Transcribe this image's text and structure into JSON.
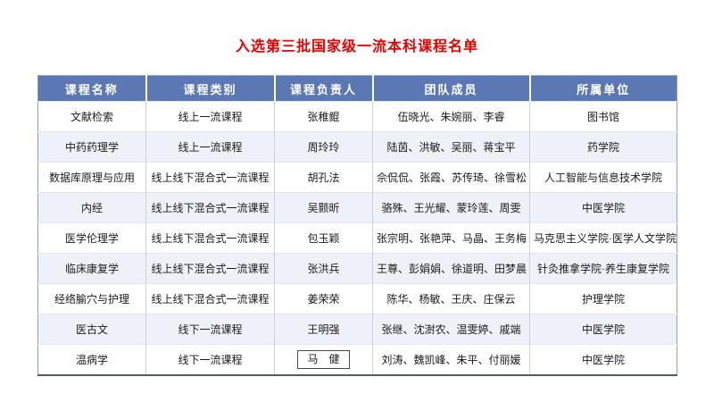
{
  "page": {
    "title": "入选第三批国家级一流本科课程名单",
    "title_color": "#e60000"
  },
  "table": {
    "headers": [
      "课程名称",
      "课程类别",
      "课程负责人",
      "团队成员",
      "所属单位"
    ],
    "header_bg": "#5b78b4",
    "stripe_bg": "#eef1f8",
    "rows": [
      {
        "course": "文献检索",
        "category": "线上一流课程",
        "leader": "张稚鲲",
        "team": "伍晓光、朱婉丽、李睿",
        "unit": "图书馆",
        "leader_boxed": false
      },
      {
        "course": "中药药理学",
        "category": "线上一流课程",
        "leader": "周玲玲",
        "team": "陆茵、洪敏、吴丽、蒋宝平",
        "unit": "药学院",
        "leader_boxed": false
      },
      {
        "course": "数据库原理与应用",
        "category": "线上线下混合式一流课程",
        "leader": "胡孔法",
        "team": "佘侃侃、张霞、苏传琦、徐雪松",
        "unit": "人工智能与信息技术学院",
        "leader_boxed": false
      },
      {
        "course": "内经",
        "category": "线上线下混合式一流课程",
        "leader": "吴颢昕",
        "team": "骆殊、王光耀、蒙玲莲、周雯",
        "unit": "中医学院",
        "leader_boxed": false
      },
      {
        "course": "医学伦理学",
        "category": "线上线下混合式一流课程",
        "leader": "包玉颖",
        "team": "张宗明、张艳萍、马晶、王务梅",
        "unit": "马克思主义学院·医学人文学院",
        "leader_boxed": false
      },
      {
        "course": "临床康复学",
        "category": "线上线下混合式一流课程",
        "leader": "张洪兵",
        "team": "王尊、彭娟娟、徐道明、田梦晨",
        "unit": "针灸推拿学院·养生康复学院",
        "leader_boxed": false
      },
      {
        "course": "经络腧穴与护理",
        "category": "线上线下混合式一流课程",
        "leader": "姜荣荣",
        "team": "陈华、杨敏、王庆、庄保云",
        "unit": "护理学院",
        "leader_boxed": false
      },
      {
        "course": "医古文",
        "category": "线下一流课程",
        "leader": "王明强",
        "team": "张继、沈澍农、温雯婷、戚端",
        "unit": "中医学院",
        "leader_boxed": false
      },
      {
        "course": "温病学",
        "category": "线下一流课程",
        "leader": "马　健",
        "team": "刘涛、魏凯峰、朱平、付丽媛",
        "unit": "中医学院",
        "leader_boxed": true
      }
    ]
  }
}
